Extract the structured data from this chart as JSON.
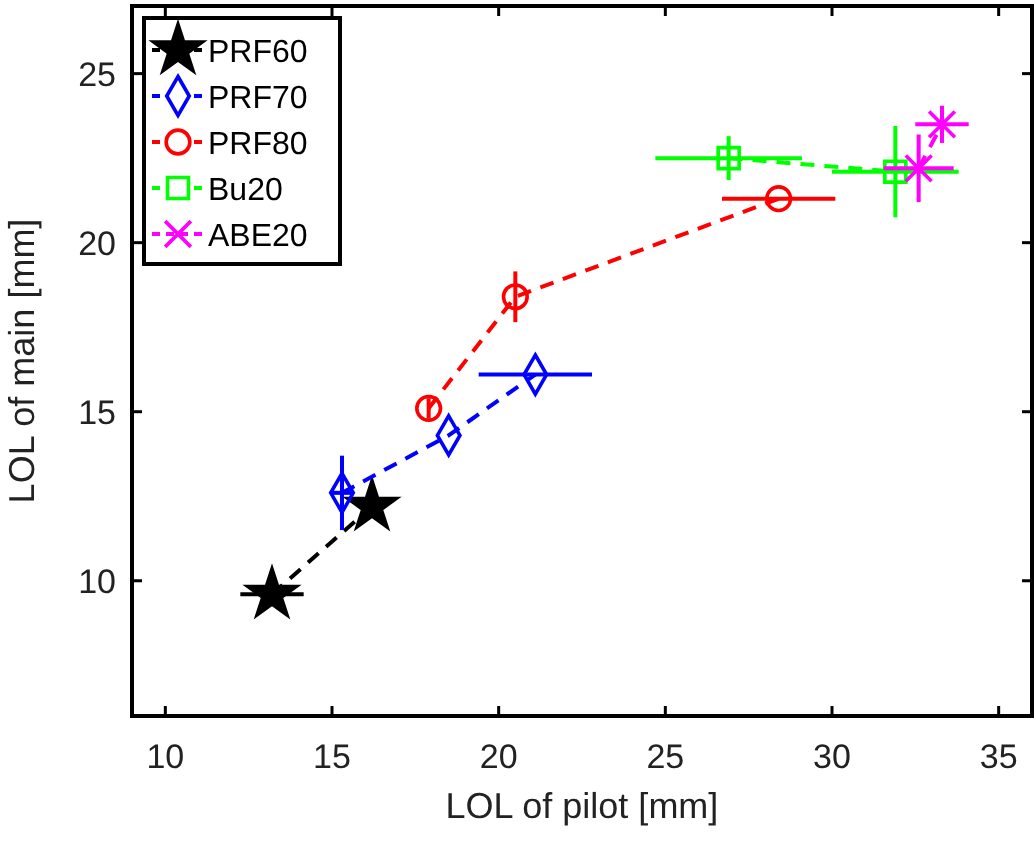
{
  "chart_data": {
    "type": "line",
    "xlabel": "LOL of pilot [mm]",
    "ylabel": "LOL of main [mm]",
    "xlim": [
      9,
      36
    ],
    "xticks": [
      10,
      15,
      20,
      25,
      30,
      35
    ],
    "ylim": [
      6,
      27
    ],
    "yticks": [
      10,
      15,
      20,
      25
    ],
    "legend": "top left",
    "line_style": "dashed",
    "series": [
      {
        "name": "PRF60",
        "color": "#000000",
        "marker": "star",
        "x": [
          13.2,
          16.2
        ],
        "values": [
          9.6,
          12.2
        ],
        "xerrors": [
          0.95,
          null
        ],
        "errors": [
          null,
          null
        ]
      },
      {
        "name": "PRF70",
        "color": "#0000ff",
        "marker": "diamond",
        "x": [
          15.3,
          18.5,
          21.1
        ],
        "values": [
          12.6,
          14.3,
          16.1
        ],
        "xerrors": [
          0.3,
          null,
          1.7
        ],
        "errors": [
          1.1,
          null,
          null
        ]
      },
      {
        "name": "PRF80",
        "color": "#ff0000",
        "marker": "circle",
        "x": [
          17.9,
          20.5,
          28.4
        ],
        "values": [
          15.1,
          18.4,
          21.3
        ],
        "xerrors": [
          null,
          null,
          1.7
        ],
        "errors": [
          0.3,
          0.75,
          null
        ]
      },
      {
        "name": "Bu20",
        "color": "#00ff00",
        "marker": "square",
        "x": [
          26.9,
          31.9
        ],
        "values": [
          22.5,
          22.1
        ],
        "xerrors": [
          2.2,
          1.9
        ],
        "errors": [
          0.65,
          1.35
        ]
      },
      {
        "name": "ABE20",
        "color": "#ff00ff",
        "marker": "cross",
        "x": [
          32.6,
          33.3
        ],
        "values": [
          22.2,
          23.5
        ],
        "xerrors": [
          1.05,
          0.8
        ],
        "errors": [
          1.0,
          0.55
        ]
      }
    ]
  }
}
